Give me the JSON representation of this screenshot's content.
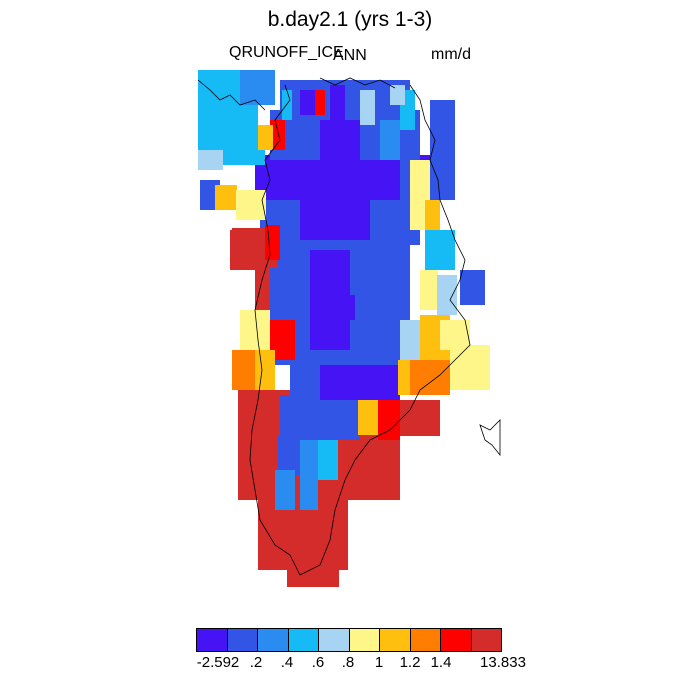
{
  "title": "b.day2.1 (yrs 1-3)",
  "variable": "QRUNOFF_ICE",
  "season": "ANN",
  "units": "mm/d",
  "colorbar": {
    "colors": [
      "#4613f5",
      "#3355e6",
      "#2a8cf0",
      "#16baf5",
      "#a7d4f2",
      "#fff68a",
      "#ffbf0f",
      "#ff7d00",
      "#ff0000",
      "#d42b2b"
    ],
    "labels": [
      "-2.592",
      ".2",
      ".4",
      ".6",
      ".8",
      "1",
      "1.2",
      "1.4",
      "13.833"
    ]
  },
  "map_data": {
    "type": "gridded-field",
    "region": "Greenland",
    "palette_order": "low-to-high"
  }
}
